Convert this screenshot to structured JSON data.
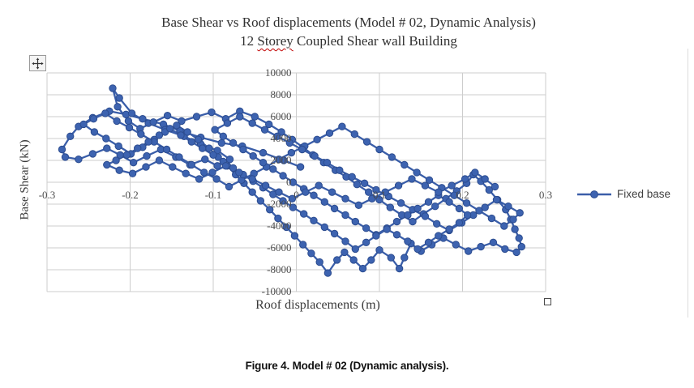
{
  "chart": {
    "title_line1": "Base Shear vs Roof displacements (Model # 02, Dynamic Analysis)",
    "title_line2": {
      "prefix": "12 ",
      "misspelled_word": "Storey",
      "suffix": " Coupled Shear wall Building"
    },
    "y_axis_title": "Base Shear (kN)",
    "x_axis_title": "Roof displacements (m)",
    "legend_label": "Fixed base"
  },
  "caption": {
    "label": "Figure 4.",
    "text": " Model # 02 (Dynamic analysis)."
  },
  "colors": {
    "series_line": "#3a5ea9",
    "marker_fill": "#3d63b0",
    "marker_stroke": "#2c4c8f",
    "grid": "#cdcdcd",
    "tick_text": "#4d4d4d",
    "spellcheck_underline": "#c00000"
  },
  "chart_data": {
    "type": "line",
    "title": "Base Shear vs Roof displacements (Model # 02, Dynamic Analysis) 12 Storey Coupled Shear wall Building",
    "xlabel": "Roof displacements (m)",
    "ylabel": "Base Shear (kN)",
    "xlim": [
      -0.3,
      0.3
    ],
    "ylim": [
      -10000,
      10000
    ],
    "grid": true,
    "legend_position": "right",
    "x_ticks": [
      -0.3,
      -0.2,
      -0.1,
      0,
      0.1,
      0.2,
      0.3
    ],
    "x_tick_labels": [
      "-0.3",
      "-0.2",
      "-0.1",
      "0",
      "0.1",
      "0.2",
      "0.3"
    ],
    "y_ticks": [
      10000,
      8000,
      6000,
      4000,
      2000,
      0,
      -2000,
      -4000,
      -6000,
      -8000,
      -10000
    ],
    "y_tick_labels": [
      "10000",
      "8000",
      "6000",
      "4000",
      "2000",
      "0",
      "-2000",
      "-4000",
      "-6000",
      "-8000",
      "-10000"
    ],
    "series": [
      {
        "name": "Fixed base",
        "marker": "circle",
        "points": [
          [
            0.005,
            1400
          ],
          [
            -0.015,
            2000
          ],
          [
            -0.04,
            2700
          ],
          [
            -0.065,
            3300
          ],
          [
            -0.09,
            3600
          ],
          [
            -0.115,
            4100
          ],
          [
            -0.14,
            4700
          ],
          [
            -0.16,
            5300
          ],
          [
            -0.185,
            5800
          ],
          [
            -0.205,
            6200
          ],
          [
            -0.225,
            6500
          ],
          [
            -0.245,
            5900
          ],
          [
            -0.262,
            5100
          ],
          [
            -0.272,
            4200
          ],
          [
            -0.282,
            3000
          ],
          [
            -0.278,
            2300
          ],
          [
            -0.262,
            2100
          ],
          [
            -0.245,
            2600
          ],
          [
            -0.228,
            3100
          ],
          [
            -0.212,
            2500
          ],
          [
            -0.196,
            1800
          ],
          [
            -0.18,
            2400
          ],
          [
            -0.163,
            3000
          ],
          [
            -0.145,
            2300
          ],
          [
            -0.128,
            1600
          ],
          [
            -0.11,
            2100
          ],
          [
            -0.095,
            1500
          ],
          [
            -0.08,
            2100
          ],
          [
            -0.095,
            2900
          ],
          [
            -0.115,
            3500
          ],
          [
            -0.135,
            4200
          ],
          [
            -0.158,
            4800
          ],
          [
            -0.178,
            5400
          ],
          [
            -0.198,
            6300
          ],
          [
            -0.213,
            7700
          ],
          [
            -0.221,
            8600
          ],
          [
            -0.215,
            6900
          ],
          [
            -0.202,
            5600
          ],
          [
            -0.188,
            4900
          ],
          [
            -0.172,
            5500
          ],
          [
            -0.155,
            6100
          ],
          [
            -0.138,
            5600
          ],
          [
            -0.12,
            6000
          ],
          [
            -0.102,
            6400
          ],
          [
            -0.085,
            5800
          ],
          [
            -0.068,
            6500
          ],
          [
            -0.05,
            6000
          ],
          [
            -0.033,
            5300
          ],
          [
            -0.018,
            4600
          ],
          [
            -0.005,
            3900
          ],
          [
            0.008,
            3200
          ],
          [
            0.02,
            2500
          ],
          [
            0.033,
            1800
          ],
          [
            0.047,
            1100
          ],
          [
            0.06,
            500
          ],
          [
            0.073,
            -200
          ],
          [
            0.087,
            -900
          ],
          [
            0.1,
            -1600
          ],
          [
            0.113,
            -2300
          ],
          [
            0.127,
            -3000
          ],
          [
            0.14,
            -3600
          ],
          [
            0.153,
            -2900
          ],
          [
            0.167,
            -2200
          ],
          [
            0.18,
            -1500
          ],
          [
            0.193,
            -800
          ],
          [
            0.205,
            -100
          ],
          [
            0.213,
            700
          ],
          [
            0.222,
            100
          ],
          [
            0.232,
            -700
          ],
          [
            0.242,
            -1600
          ],
          [
            0.252,
            -2500
          ],
          [
            0.258,
            -3400
          ],
          [
            0.263,
            -4300
          ],
          [
            0.268,
            -5100
          ],
          [
            0.271,
            -5900
          ],
          [
            0.265,
            -6400
          ],
          [
            0.251,
            -6100
          ],
          [
            0.237,
            -5500
          ],
          [
            0.222,
            -5900
          ],
          [
            0.207,
            -6300
          ],
          [
            0.192,
            -5700
          ],
          [
            0.177,
            -5100
          ],
          [
            0.163,
            -5700
          ],
          [
            0.15,
            -6300
          ],
          [
            0.138,
            -5600
          ],
          [
            0.13,
            -6900
          ],
          [
            0.124,
            -7900
          ],
          [
            0.114,
            -6900
          ],
          [
            0.1,
            -6200
          ],
          [
            0.09,
            -7100
          ],
          [
            0.08,
            -7900
          ],
          [
            0.069,
            -7100
          ],
          [
            0.058,
            -6400
          ],
          [
            0.049,
            -7100
          ],
          [
            0.038,
            -8300
          ],
          [
            0.028,
            -7300
          ],
          [
            0.018,
            -6500
          ],
          [
            0.008,
            -5700
          ],
          [
            -0.002,
            -4900
          ],
          [
            -0.012,
            -4100
          ],
          [
            -0.022,
            -3300
          ],
          [
            -0.032,
            -2500
          ],
          [
            -0.043,
            -1700
          ],
          [
            -0.053,
            -900
          ],
          [
            -0.063,
            -100
          ],
          [
            -0.073,
            700
          ],
          [
            -0.083,
            1500
          ],
          [
            -0.094,
            2300
          ],
          [
            -0.105,
            3100
          ],
          [
            -0.118,
            3900
          ],
          [
            -0.131,
            4600
          ],
          [
            -0.144,
            5200
          ],
          [
            -0.158,
            4600
          ],
          [
            -0.171,
            3900
          ],
          [
            -0.185,
            3200
          ],
          [
            -0.199,
            2600
          ],
          [
            -0.214,
            3300
          ],
          [
            -0.229,
            4000
          ],
          [
            -0.243,
            4600
          ],
          [
            -0.256,
            5300
          ],
          [
            -0.244,
            5800
          ],
          [
            -0.23,
            6300
          ],
          [
            -0.216,
            5600
          ],
          [
            -0.201,
            5000
          ],
          [
            -0.187,
            4400
          ],
          [
            -0.171,
            3700
          ],
          [
            -0.156,
            3000
          ],
          [
            -0.141,
            2300
          ],
          [
            -0.126,
            1600
          ],
          [
            -0.111,
            900
          ],
          [
            -0.096,
            300
          ],
          [
            -0.081,
            -400
          ],
          [
            -0.066,
            200
          ],
          [
            -0.051,
            800
          ],
          [
            -0.036,
            1400
          ],
          [
            -0.021,
            2100
          ],
          [
            -0.006,
            2700
          ],
          [
            0.01,
            3300
          ],
          [
            0.025,
            3900
          ],
          [
            0.04,
            4500
          ],
          [
            0.055,
            5100
          ],
          [
            0.07,
            4400
          ],
          [
            0.085,
            3700
          ],
          [
            0.1,
            3000
          ],
          [
            0.115,
            2300
          ],
          [
            0.13,
            1600
          ],
          [
            0.145,
            900
          ],
          [
            0.16,
            200
          ],
          [
            0.175,
            -500
          ],
          [
            0.19,
            -1200
          ],
          [
            0.205,
            -1900
          ],
          [
            0.22,
            -2600
          ],
          [
            0.235,
            -3300
          ],
          [
            0.25,
            -4000
          ],
          [
            0.261,
            -3400
          ],
          [
            0.269,
            -2800
          ],
          [
            0.255,
            -2200
          ],
          [
            0.241,
            -1600
          ],
          [
            0.227,
            -2300
          ],
          [
            0.213,
            -3000
          ],
          [
            0.199,
            -3700
          ],
          [
            0.184,
            -4400
          ],
          [
            0.169,
            -3800
          ],
          [
            0.155,
            -3100
          ],
          [
            0.14,
            -2500
          ],
          [
            0.126,
            -1900
          ],
          [
            0.111,
            -1300
          ],
          [
            0.096,
            -700
          ],
          [
            0.082,
            -100
          ],
          [
            0.067,
            500
          ],
          [
            0.052,
            1100
          ],
          [
            0.037,
            1800
          ],
          [
            0.022,
            2400
          ],
          [
            0.007,
            3000
          ],
          [
            -0.008,
            3600
          ],
          [
            -0.023,
            4200
          ],
          [
            -0.038,
            4800
          ],
          [
            -0.053,
            5400
          ],
          [
            -0.068,
            6000
          ],
          [
            -0.083,
            5400
          ],
          [
            -0.098,
            4800
          ],
          [
            -0.088,
            4200
          ],
          [
            -0.076,
            3600
          ],
          [
            -0.064,
            3000
          ],
          [
            -0.052,
            2400
          ],
          [
            -0.04,
            1800
          ],
          [
            -0.028,
            1200
          ],
          [
            -0.016,
            600
          ],
          [
            -0.004,
            0
          ],
          [
            0.009,
            -600
          ],
          [
            0.021,
            -1200
          ],
          [
            0.034,
            -1800
          ],
          [
            0.046,
            -2400
          ],
          [
            0.059,
            -3000
          ],
          [
            0.071,
            -3600
          ],
          [
            0.084,
            -4200
          ],
          [
            0.096,
            -4800
          ],
          [
            0.109,
            -4200
          ],
          [
            0.121,
            -3600
          ],
          [
            0.134,
            -3000
          ],
          [
            0.146,
            -2400
          ],
          [
            0.159,
            -1800
          ],
          [
            0.171,
            -1200
          ],
          [
            0.184,
            -1800
          ],
          [
            0.196,
            -2400
          ],
          [
            0.206,
            -3000
          ],
          [
            0.196,
            -3700
          ],
          [
            0.184,
            -4300
          ],
          [
            0.171,
            -4900
          ],
          [
            0.159,
            -5500
          ],
          [
            0.146,
            -6100
          ],
          [
            0.134,
            -5400
          ],
          [
            0.121,
            -4800
          ],
          [
            0.109,
            -4300
          ],
          [
            0.096,
            -4900
          ],
          [
            0.084,
            -5500
          ],
          [
            0.071,
            -6100
          ],
          [
            0.059,
            -5400
          ],
          [
            0.046,
            -4700
          ],
          [
            0.034,
            -4100
          ],
          [
            0.021,
            -3500
          ],
          [
            0.009,
            -2900
          ],
          [
            -0.004,
            -2300
          ],
          [
            -0.016,
            -1700
          ],
          [
            -0.028,
            -1100
          ],
          [
            -0.04,
            -500
          ],
          [
            -0.052,
            100
          ],
          [
            -0.064,
            700
          ],
          [
            -0.076,
            1300
          ],
          [
            -0.088,
            1900
          ],
          [
            -0.1,
            2500
          ],
          [
            -0.113,
            3100
          ],
          [
            -0.126,
            3700
          ],
          [
            -0.139,
            4300
          ],
          [
            -0.152,
            4900
          ],
          [
            -0.165,
            4300
          ],
          [
            -0.178,
            3700
          ],
          [
            -0.191,
            3100
          ],
          [
            -0.204,
            2500
          ],
          [
            -0.217,
            2000
          ],
          [
            -0.228,
            1600
          ],
          [
            -0.213,
            1100
          ],
          [
            -0.197,
            800
          ],
          [
            -0.181,
            1400
          ],
          [
            -0.165,
            2000
          ],
          [
            -0.149,
            1400
          ],
          [
            -0.133,
            800
          ],
          [
            -0.117,
            300
          ],
          [
            -0.101,
            900
          ],
          [
            -0.085,
            1500
          ],
          [
            -0.069,
            900
          ],
          [
            -0.053,
            300
          ],
          [
            -0.037,
            -300
          ],
          [
            -0.021,
            -900
          ],
          [
            -0.005,
            -1500
          ],
          [
            0.011,
            -900
          ],
          [
            0.027,
            -300
          ],
          [
            0.043,
            -900
          ],
          [
            0.059,
            -1500
          ],
          [
            0.075,
            -2100
          ],
          [
            0.091,
            -1500
          ],
          [
            0.107,
            -900
          ],
          [
            0.123,
            -300
          ],
          [
            0.139,
            300
          ],
          [
            0.155,
            -300
          ],
          [
            0.171,
            -900
          ],
          [
            0.187,
            -300
          ],
          [
            0.203,
            300
          ],
          [
            0.215,
            900
          ],
          [
            0.227,
            300
          ],
          [
            0.239,
            -400
          ]
        ]
      }
    ]
  }
}
